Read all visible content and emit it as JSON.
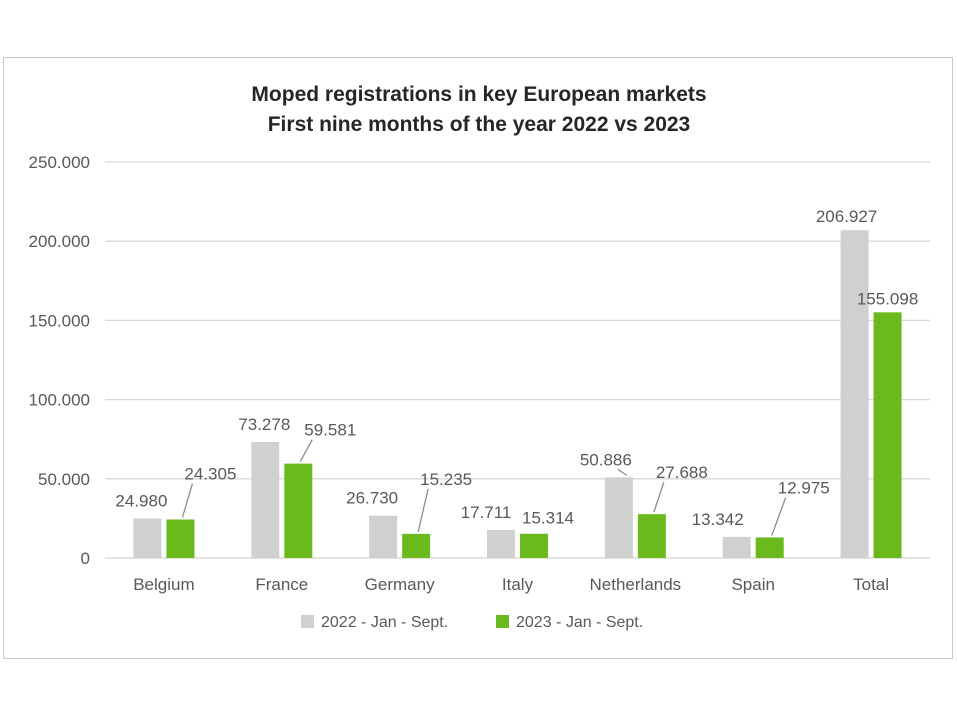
{
  "chart_data": {
    "type": "bar",
    "title": [
      "Moped registrations in key European markets",
      "First nine months of the year 2022 vs 2023"
    ],
    "categories": [
      "Belgium",
      "France",
      "Germany",
      "Italy",
      "Netherlands",
      "Spain",
      "Total"
    ],
    "series": [
      {
        "name": "2022 - Jan - Sept.",
        "color": "#d0d0d0",
        "values": [
          24980,
          73278,
          26730,
          17711,
          50886,
          13342,
          206927
        ],
        "labels": [
          "24.980",
          "73.278",
          "26.730",
          "17.711",
          "50.886",
          "13.342",
          "206.927"
        ]
      },
      {
        "name": "2023 - Jan - Sept.",
        "color": "#6aba1e",
        "values": [
          24305,
          59581,
          15235,
          15314,
          27688,
          12975,
          155098
        ],
        "labels": [
          "24.305",
          "59.581",
          "15.235",
          "15.314",
          "27.688",
          "12.975",
          "155.098"
        ]
      }
    ],
    "ylim": [
      0,
      250000
    ],
    "yticks": [
      0,
      50000,
      100000,
      150000,
      200000,
      250000
    ],
    "ytick_labels": [
      "0",
      "50.000",
      "100.000",
      "150.000",
      "200.000",
      "250.000"
    ],
    "grid": true,
    "legend_position": "bottom",
    "xlabel": "",
    "ylabel": ""
  }
}
